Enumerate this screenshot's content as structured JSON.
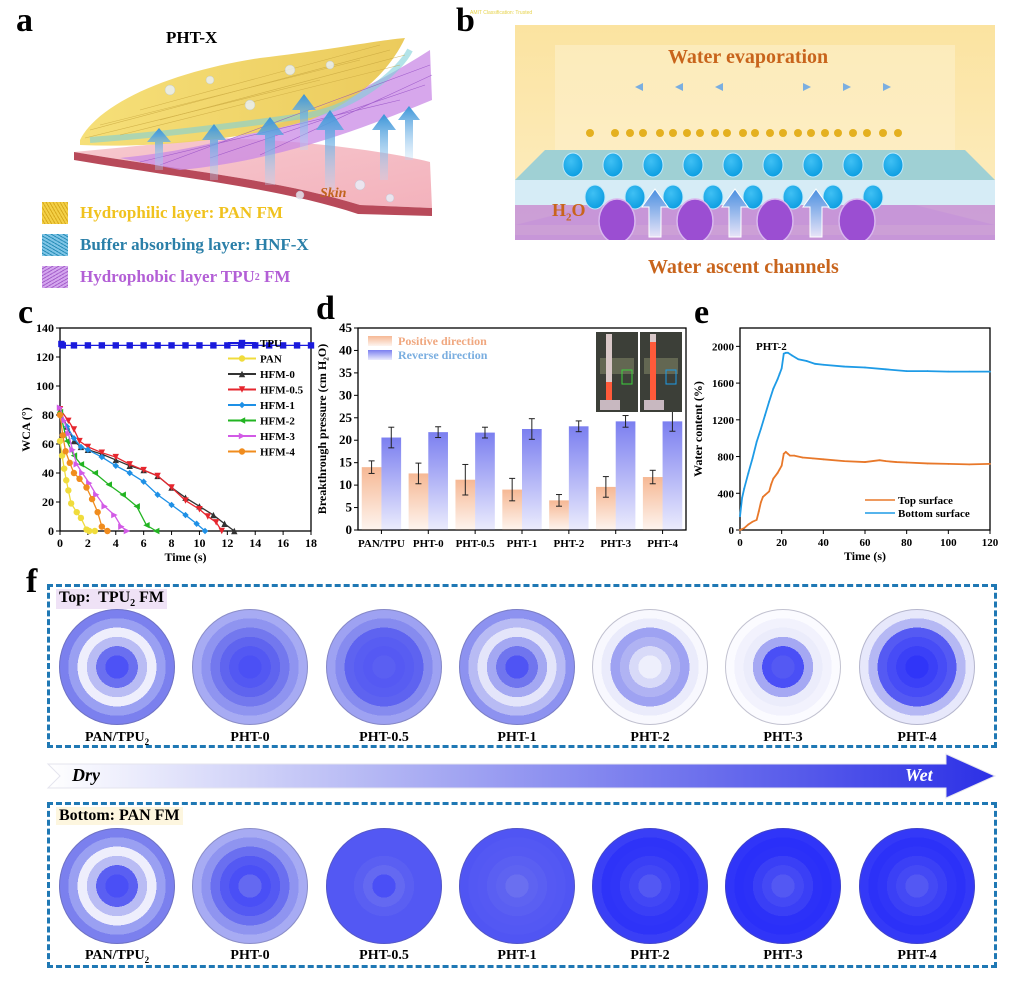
{
  "panels": {
    "a": {
      "letter": "a",
      "title": "PHT-X",
      "skin_label": "Skin",
      "legend": [
        {
          "label": "Hydrophilic layer: PAN FM",
          "color": "#f2c81e"
        },
        {
          "label": "Buffer absorbing layer: HNF-X",
          "color": "#2a8fb8"
        },
        {
          "label": "Hydrophobic layer TPU",
          "sub": "2",
          "suffix": " FM",
          "color": "#b35fd6"
        }
      ]
    },
    "b": {
      "letter": "b",
      "watermark": "AMIT Classification: Trusted",
      "top_label": "Water evaporation",
      "h2o_label": "H",
      "h2o_sub": "2",
      "h2o_suffix": "O",
      "bottom_label": "Water ascent channels"
    },
    "c": {
      "letter": "c"
    },
    "d": {
      "letter": "d"
    },
    "e": {
      "letter": "e"
    },
    "f": {
      "letter": "f",
      "top_box_label": "Top:  TPU",
      "top_box_sub": "2",
      "top_box_suffix": " FM",
      "bottom_box_label": "Bottom: PAN FM",
      "arrow_left": "Dry",
      "arrow_right": "Wet",
      "samples": [
        {
          "label": "PAN/TPU",
          "sub": "2"
        },
        {
          "label": "PHT-0",
          "sub": ""
        },
        {
          "label": "PHT-0.5",
          "sub": ""
        },
        {
          "label": "PHT-1",
          "sub": ""
        },
        {
          "label": "PHT-2",
          "sub": ""
        },
        {
          "label": "PHT-3",
          "sub": ""
        },
        {
          "label": "PHT-4",
          "sub": ""
        }
      ],
      "top_rings": [
        [
          "#7b80ee",
          "#9aa0f2",
          "#eeeefc",
          "#b9bcf4",
          "#6a6ff0",
          "#4d52f6"
        ],
        [
          "#a7abf3",
          "#8f94f0",
          "#7378ee",
          "#5f64ef",
          "#5358f3",
          "#4b50f5"
        ],
        [
          "#9ea2f2",
          "#868bef",
          "#5e63f0",
          "#585df2",
          "#5559f3",
          "#5a5ff2"
        ],
        [
          "#8d92f0",
          "#b8bbf4",
          "#e4e5fa",
          "#a4a8f2",
          "#7075ee",
          "#4f54f4"
        ],
        [
          "#f8f8fe",
          "#eaebfb",
          "#9ea2f2",
          "#b0b3f3",
          "#d8daf8",
          "#eeeffc"
        ],
        [
          "#fbfbff",
          "#f2f2fd",
          "#ebecfb",
          "#a5a8f3",
          "#4a4ff6",
          "#5459f3"
        ],
        [
          "#e7e8fb",
          "#b5b8f4",
          "#555af3",
          "#474cf6",
          "#3b40f7",
          "#3035f8"
        ]
      ],
      "bottom_rings": [
        [
          "#7b80ee",
          "#9aa0f2",
          "#eeeefc",
          "#b9bcf4",
          "#5a5ff2",
          "#4a4ff6"
        ],
        [
          "#a7abf3",
          "#8f94f0",
          "#6a6ff0",
          "#5459f3",
          "#4a4ff6",
          "#6469f1"
        ],
        [
          "#5358f3",
          "#5358f3",
          "#5358f3",
          "#5a5ff2",
          "#6469f1",
          "#4a4ff6"
        ],
        [
          "#5055f3",
          "#5358f3",
          "#5559f3",
          "#5a5ff2",
          "#5e63f1",
          "#6a6ff0"
        ],
        [
          "#3a3ff6",
          "#2e33f8",
          "#3035f8",
          "#3a3ff6",
          "#4247f5",
          "#5358f3"
        ],
        [
          "#3035f8",
          "#2a2ff9",
          "#2c31f8",
          "#3a3ff6",
          "#4449f5",
          "#5358f3"
        ],
        [
          "#3439f7",
          "#2c31f8",
          "#3035f8",
          "#3b40f6",
          "#4449f5",
          "#5358f3"
        ]
      ]
    }
  },
  "chart_data": [
    {
      "id": "c",
      "type": "line",
      "xlabel": "Time (s)",
      "ylabel": "WCA (°)",
      "xlim": [
        0,
        18
      ],
      "ylim": [
        0,
        140
      ],
      "xticks": [
        0,
        2,
        4,
        6,
        8,
        10,
        12,
        14,
        16,
        18
      ],
      "yticks": [
        0,
        20,
        40,
        60,
        80,
        100,
        120,
        140
      ],
      "legend_position": "center-right",
      "series": [
        {
          "name": "TPU",
          "color": "#1a1adc",
          "marker": "square",
          "x": [
            0.1,
            0.2,
            1,
            2,
            3,
            4,
            5,
            6,
            7,
            8,
            9,
            10,
            11,
            12,
            13,
            14,
            15,
            16,
            17,
            18
          ],
          "y": [
            129,
            128,
            128,
            128,
            128,
            128,
            128,
            128,
            128,
            128,
            128,
            128,
            128,
            128,
            128,
            128,
            128,
            128,
            128,
            128
          ]
        },
        {
          "name": "PAN",
          "color": "#f0dc3c",
          "marker": "circle",
          "x": [
            0,
            0.15,
            0.3,
            0.45,
            0.6,
            0.8,
            1.2,
            1.5,
            1.9,
            2.1,
            2.5
          ],
          "y": [
            62,
            52,
            43,
            35,
            28,
            19,
            13,
            9,
            1,
            0,
            0
          ]
        },
        {
          "name": "HFM-0",
          "color": "#333333",
          "marker": "triangle-up",
          "x": [
            0,
            0.5,
            1,
            1.5,
            2,
            3,
            4,
            5,
            6,
            7,
            8,
            9,
            10,
            11,
            11.8,
            12.5
          ],
          "y": [
            83,
            72,
            62,
            58,
            56,
            53,
            49,
            45,
            42,
            38,
            30,
            23,
            17,
            11,
            5,
            0
          ]
        },
        {
          "name": "HFM-0.5",
          "color": "#e6262e",
          "marker": "triangle-down",
          "x": [
            0,
            0.6,
            1,
            1.4,
            2,
            3,
            4,
            5,
            6,
            7,
            8,
            9,
            10,
            10.6,
            11.2,
            11.6
          ],
          "y": [
            84,
            76,
            70,
            62,
            58,
            54,
            51,
            46,
            42,
            38,
            30,
            21,
            15,
            10,
            6,
            0
          ]
        },
        {
          "name": "HFM-1",
          "color": "#1e90e6",
          "marker": "diamond",
          "x": [
            0,
            0.5,
            1,
            1.5,
            2,
            3,
            4,
            5,
            6,
            7,
            8,
            9,
            9.8,
            10.4
          ],
          "y": [
            80,
            72,
            64,
            58,
            56,
            51,
            45,
            40,
            34,
            25,
            18,
            11,
            5,
            0
          ]
        },
        {
          "name": "HFM-2",
          "color": "#22b422",
          "marker": "triangle-left",
          "x": [
            0,
            0.5,
            1,
            1.5,
            2.5,
            3.5,
            4.5,
            5.5,
            6.2,
            6.9
          ],
          "y": [
            82,
            62,
            52,
            46,
            40,
            32,
            25,
            17,
            4,
            0
          ]
        },
        {
          "name": "HFM-3",
          "color": "#d25ae6",
          "marker": "triangle-right",
          "x": [
            0,
            0.3,
            0.6,
            0.9,
            1.2,
            1.6,
            2.1,
            2.6,
            3.2,
            3.9,
            4.4,
            4.8
          ],
          "y": [
            85,
            76,
            67,
            56,
            46,
            40,
            33,
            25,
            17,
            11,
            3,
            0
          ]
        },
        {
          "name": "HFM-4",
          "color": "#f08c1e",
          "marker": "circle",
          "x": [
            0,
            0.2,
            0.4,
            0.7,
            1,
            1.4,
            1.9,
            2.3,
            2.7,
            3,
            3.4
          ],
          "y": [
            80,
            66,
            55,
            47,
            40,
            36,
            30,
            22,
            13,
            3,
            0
          ]
        }
      ]
    },
    {
      "id": "d",
      "type": "bar",
      "ylabel": "Breakthrough pressure (cm H₂O)",
      "ylim": [
        0,
        45
      ],
      "yticks": [
        0,
        5,
        10,
        15,
        20,
        25,
        30,
        35,
        40,
        45
      ],
      "categories": [
        "PAN/TPU",
        "PHT-0",
        "PHT-0.5",
        "PHT-1",
        "PHT-2",
        "PHT-3",
        "PHT-4"
      ],
      "legend_position": "top-left",
      "series": [
        {
          "name": "Positive direction",
          "color": "#f6b894",
          "label_color": "#f0a880",
          "values": [
            14.0,
            12.6,
            11.2,
            9.0,
            6.6,
            9.6,
            11.8
          ],
          "errors": [
            1.4,
            2.3,
            3.4,
            2.5,
            1.3,
            2.3,
            1.5
          ]
        },
        {
          "name": "Reverse direction",
          "color": "#7b7ff0",
          "label_color": "#7aaee0",
          "values": [
            20.6,
            21.8,
            21.7,
            22.5,
            23.1,
            24.2,
            24.2
          ],
          "errors": [
            2.3,
            1.2,
            1.2,
            2.3,
            1.2,
            1.3,
            2.2
          ]
        }
      ],
      "inset": "photo of two vertical tubes with red liquid (positive vs reverse)"
    },
    {
      "id": "e",
      "type": "line",
      "title": "PHT-2",
      "xlabel": "Time (s)",
      "ylabel": "Water content (%)",
      "xlim": [
        0,
        120
      ],
      "ylim": [
        0,
        2200
      ],
      "xticks": [
        0,
        20,
        40,
        60,
        80,
        100,
        120
      ],
      "yticks": [
        0,
        400,
        800,
        1200,
        1600,
        2000
      ],
      "legend_position": "bottom-right",
      "series": [
        {
          "name": "Top surface",
          "color": "#e8782a",
          "x": [
            0,
            2,
            4,
            6,
            8,
            9,
            10,
            11,
            12,
            14,
            15,
            16,
            18,
            19,
            20,
            21,
            22,
            23,
            24,
            26,
            30,
            35,
            40,
            50,
            60,
            67,
            70,
            75,
            80,
            90,
            100,
            110,
            120
          ],
          "y": [
            0,
            20,
            60,
            90,
            110,
            200,
            300,
            360,
            380,
            420,
            500,
            560,
            620,
            660,
            700,
            830,
            850,
            830,
            810,
            810,
            790,
            780,
            770,
            750,
            740,
            760,
            750,
            740,
            735,
            725,
            720,
            715,
            720
          ]
        },
        {
          "name": "Bottom surface",
          "color": "#1e9be6",
          "x": [
            0,
            1,
            2,
            4,
            6,
            8,
            10,
            12,
            14,
            16,
            18,
            19,
            20,
            21,
            22,
            23,
            25,
            28,
            32,
            36,
            40,
            50,
            60,
            70,
            80,
            90,
            100,
            110,
            120
          ],
          "y": [
            150,
            350,
            450,
            620,
            780,
            960,
            1100,
            1250,
            1400,
            1540,
            1640,
            1700,
            1760,
            1920,
            1930,
            1930,
            1900,
            1860,
            1840,
            1810,
            1800,
            1780,
            1770,
            1750,
            1730,
            1730,
            1725,
            1725,
            1725
          ]
        }
      ]
    }
  ]
}
